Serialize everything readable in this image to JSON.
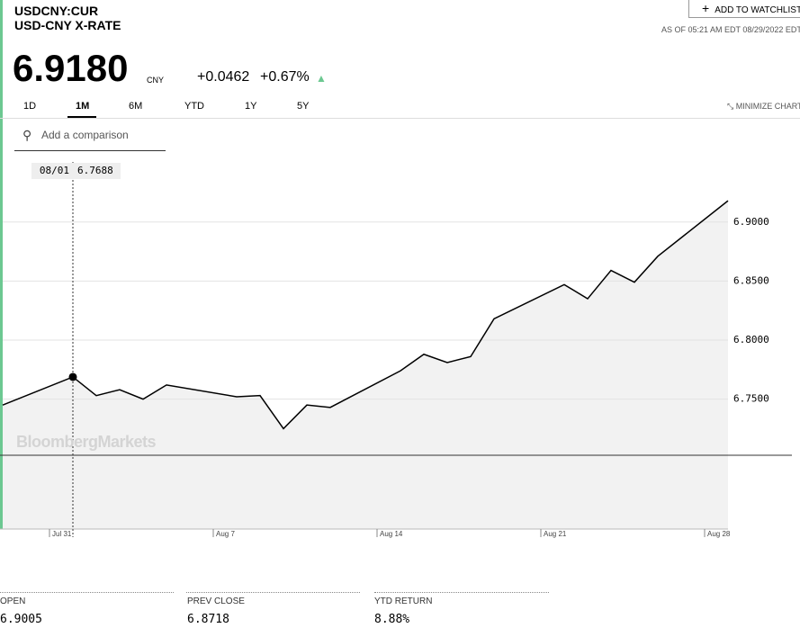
{
  "header": {
    "symbol": "USDCNY:CUR",
    "name": "USD-CNY X-RATE",
    "price": "6.9180",
    "currency": "CNY",
    "change": "+0.0462",
    "change_pct": "+0.67%",
    "timestamp": "AS OF 05:21 AM EDT 08/29/2022 EDT",
    "watchlist": "ADD TO WATCHLIST"
  },
  "tabs": [
    "1D",
    "1M",
    "6M",
    "YTD",
    "1Y",
    "5Y"
  ],
  "minimize": "MINIMIZE CHART",
  "comparison": "Add a comparison",
  "watermark": "BloombergMarkets",
  "stats": [
    {
      "label": "OPEN",
      "value": "6.9005"
    },
    {
      "label": "PREV CLOSE",
      "value": "6.8718"
    },
    {
      "label": "YTD RETURN",
      "value": "8.88%"
    }
  ],
  "chart_data": {
    "type": "line",
    "x": [
      "07/29",
      "08/01",
      "08/02",
      "08/03",
      "08/04",
      "08/05",
      "08/08",
      "08/09",
      "08/10",
      "08/11",
      "08/12",
      "08/15",
      "08/16",
      "08/17",
      "08/18",
      "08/19",
      "08/22",
      "08/23",
      "08/24",
      "08/25",
      "08/26",
      "08/29"
    ],
    "values": [
      6.745,
      6.7688,
      6.753,
      6.758,
      6.75,
      6.762,
      6.752,
      6.753,
      6.725,
      6.745,
      6.743,
      6.774,
      6.788,
      6.781,
      6.786,
      6.818,
      6.847,
      6.835,
      6.859,
      6.849,
      6.871,
      6.918
    ],
    "color": "#000000",
    "xlim": [
      "07/29",
      "08/29"
    ],
    "xticks": [
      {
        "value": "07/31",
        "label": "Jul 31"
      },
      {
        "value": "08/07",
        "label": "Aug 7"
      },
      {
        "value": "08/14",
        "label": "Aug 14"
      },
      {
        "value": "08/21",
        "label": "Aug 21"
      },
      {
        "value": "08/28",
        "label": "Aug 28"
      }
    ],
    "ylim": [
      6.64,
      6.96
    ],
    "yticks": [
      {
        "value": 6.75,
        "label": "6.7500"
      },
      {
        "value": 6.8,
        "label": "6.8000"
      },
      {
        "value": 6.85,
        "label": "6.8500"
      },
      {
        "value": 6.9,
        "label": "6.9000"
      }
    ],
    "grid": true
  }
}
